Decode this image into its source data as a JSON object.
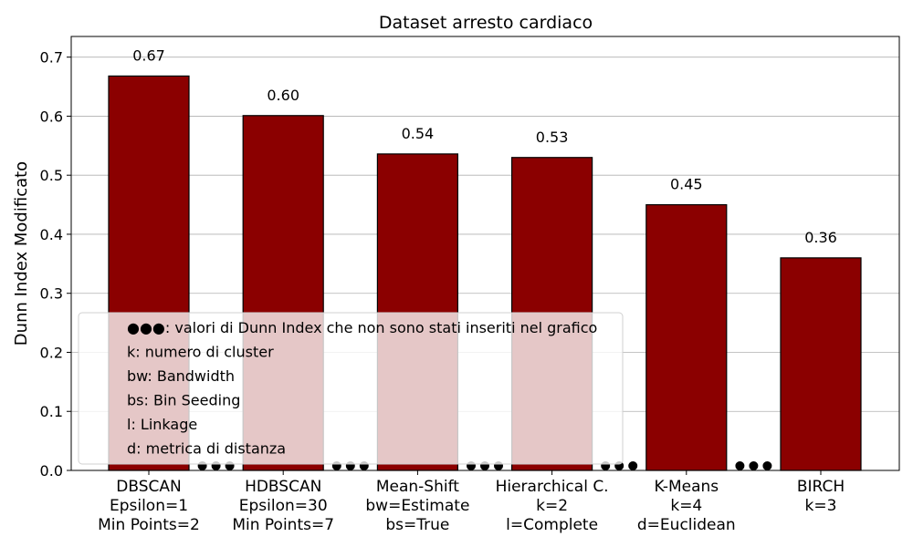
{
  "chart_data": {
    "type": "bar",
    "title": "Dataset arresto cardiaco",
    "xlabel": "",
    "ylabel": "Dunn Index Modificato",
    "ylim": [
      0,
      0.735
    ],
    "yticks": [
      "0.0",
      "0.1",
      "0.2",
      "0.3",
      "0.4",
      "0.5",
      "0.6",
      "0.7"
    ],
    "grid": true,
    "categories": [
      [
        "DBSCAN",
        "Epsilon=1",
        "Min Points=2"
      ],
      [
        "HDBSCAN",
        "Epsilon=30",
        "Min Points=7"
      ],
      [
        "Mean-Shift",
        "bw=Estimate",
        "bs=True"
      ],
      [
        "Hierarchical C.",
        "k=2",
        "l=Complete"
      ],
      [
        "K-Means",
        "k=4",
        "d=Euclidean"
      ],
      [
        "BIRCH",
        "k=3"
      ]
    ],
    "values": [
      0.668,
      0.601,
      0.536,
      0.53,
      0.45,
      0.36
    ],
    "value_labels": [
      "0.67",
      "0.60",
      "0.54",
      "0.53",
      "0.45",
      "0.36"
    ],
    "bar_color": "#8b0000",
    "legend_placement": "lower-left",
    "legend_lines": [
      "●●●: valori di Dunn Index che non sono stati inseriti nel grafico",
      "k: numero di cluster",
      "bw: Bandwidth",
      "bs: Bin Seeding",
      "l: Linkage",
      "d: metrica di distanza"
    ]
  }
}
